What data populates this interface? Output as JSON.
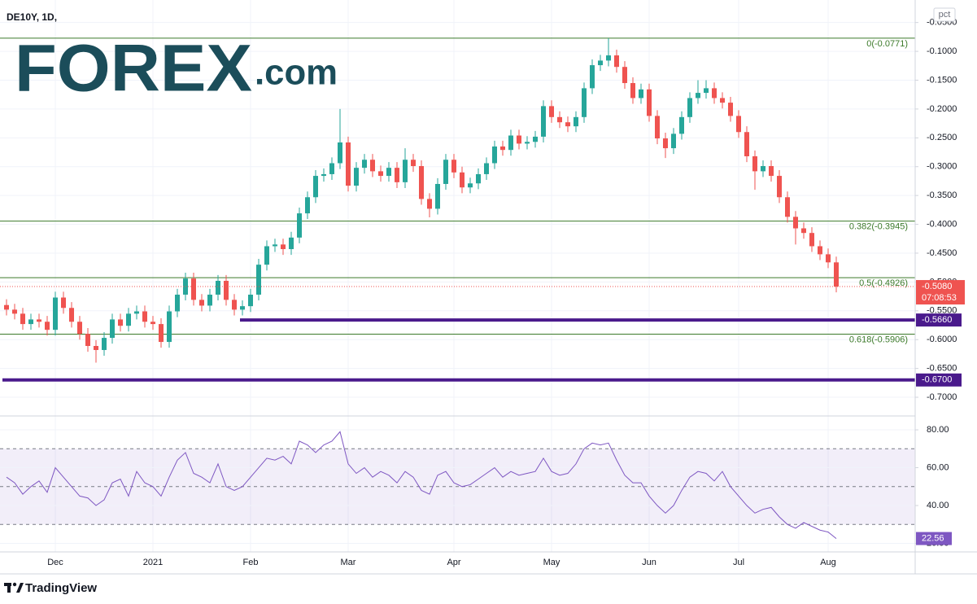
{
  "chart_data": [
    {
      "type": "candlestick",
      "title": "DE10Y, 1D,",
      "unit": "pct",
      "up_color": "#26a69a",
      "down_color": "#ef5350",
      "categories": [
        null,
        null,
        null,
        null,
        null,
        null,
        "Dec",
        null,
        null,
        null,
        null,
        null,
        null,
        null,
        null,
        null,
        null,
        null,
        "2021",
        null,
        null,
        null,
        null,
        null,
        null,
        null,
        null,
        null,
        null,
        null,
        "Feb",
        null,
        null,
        null,
        null,
        null,
        null,
        null,
        null,
        null,
        null,
        null,
        "Mar",
        null,
        null,
        null,
        null,
        null,
        null,
        null,
        null,
        null,
        null,
        null,
        null,
        "Apr",
        null,
        null,
        null,
        null,
        null,
        null,
        null,
        null,
        null,
        null,
        null,
        "May",
        null,
        null,
        null,
        null,
        null,
        null,
        null,
        null,
        null,
        null,
        null,
        "Jun",
        null,
        null,
        null,
        null,
        null,
        null,
        null,
        null,
        null,
        null,
        "Jul",
        null,
        null,
        null,
        null,
        null,
        null,
        null,
        null,
        null,
        null,
        "Aug",
        null
      ],
      "open": [
        -0.54,
        -0.548,
        -0.555,
        -0.573,
        -0.565,
        -0.569,
        -0.583,
        -0.527,
        -0.545,
        -0.569,
        -0.59,
        -0.611,
        -0.618,
        -0.597,
        -0.565,
        -0.576,
        -0.555,
        -0.551,
        -0.569,
        -0.573,
        -0.604,
        -0.551,
        -0.522,
        -0.494,
        -0.531,
        -0.541,
        -0.522,
        -0.498,
        -0.531,
        -0.548,
        -0.542,
        -0.522,
        -0.47,
        -0.438,
        -0.435,
        -0.443,
        -0.423,
        -0.381,
        -0.353,
        -0.316,
        -0.313,
        -0.294,
        -0.258,
        -0.333,
        -0.302,
        -0.288,
        -0.308,
        -0.316,
        -0.302,
        -0.327,
        -0.288,
        -0.299,
        -0.356,
        -0.373,
        -0.33,
        -0.288,
        -0.31,
        -0.336,
        -0.329,
        -0.313,
        -0.294,
        -0.265,
        -0.271,
        -0.246,
        -0.26,
        -0.257,
        -0.248,
        -0.195,
        -0.214,
        -0.223,
        -0.23,
        -0.214,
        -0.164,
        -0.124,
        -0.116,
        -0.107,
        -0.127,
        -0.155,
        -0.181,
        -0.166,
        -0.212,
        -0.251,
        -0.268,
        -0.243,
        -0.214,
        -0.181,
        -0.172,
        -0.164,
        -0.181,
        -0.189,
        -0.212,
        -0.24,
        -0.282,
        -0.308,
        -0.299,
        -0.316,
        -0.353,
        -0.387,
        -0.407,
        -0.415,
        -0.438,
        -0.452,
        -0.466
      ],
      "high": [
        -0.53,
        -0.538,
        -0.545,
        -0.555,
        -0.555,
        -0.559,
        -0.517,
        -0.517,
        -0.535,
        -0.559,
        -0.58,
        -0.601,
        -0.587,
        -0.555,
        -0.555,
        -0.545,
        -0.541,
        -0.541,
        -0.559,
        -0.563,
        -0.541,
        -0.512,
        -0.484,
        -0.484,
        -0.521,
        -0.512,
        -0.488,
        -0.488,
        -0.521,
        -0.532,
        -0.512,
        -0.46,
        -0.428,
        -0.425,
        -0.425,
        -0.413,
        -0.371,
        -0.343,
        -0.306,
        -0.303,
        -0.284,
        -0.2,
        -0.248,
        -0.292,
        -0.278,
        -0.278,
        -0.298,
        -0.292,
        -0.292,
        -0.268,
        -0.278,
        -0.289,
        -0.346,
        -0.32,
        -0.278,
        -0.278,
        -0.3,
        -0.319,
        -0.303,
        -0.284,
        -0.255,
        -0.255,
        -0.236,
        -0.236,
        -0.247,
        -0.238,
        -0.185,
        -0.185,
        -0.204,
        -0.213,
        -0.204,
        -0.154,
        -0.114,
        -0.106,
        -0.0771,
        -0.097,
        -0.117,
        -0.145,
        -0.156,
        -0.156,
        -0.202,
        -0.241,
        -0.233,
        -0.204,
        -0.171,
        -0.15,
        -0.15,
        -0.154,
        -0.171,
        -0.179,
        -0.202,
        -0.23,
        -0.272,
        -0.289,
        -0.289,
        -0.306,
        -0.343,
        -0.377,
        -0.397,
        -0.405,
        -0.428,
        -0.442,
        -0.456
      ],
      "low": [
        -0.558,
        -0.565,
        -0.583,
        -0.583,
        -0.579,
        -0.593,
        -0.593,
        -0.555,
        -0.579,
        -0.6,
        -0.621,
        -0.64,
        -0.628,
        -0.607,
        -0.586,
        -0.586,
        -0.565,
        -0.579,
        -0.583,
        -0.614,
        -0.614,
        -0.561,
        -0.532,
        -0.541,
        -0.551,
        -0.551,
        -0.532,
        -0.541,
        -0.558,
        -0.558,
        -0.552,
        -0.532,
        -0.48,
        -0.448,
        -0.453,
        -0.453,
        -0.433,
        -0.391,
        -0.363,
        -0.326,
        -0.323,
        -0.304,
        -0.343,
        -0.343,
        -0.312,
        -0.318,
        -0.326,
        -0.326,
        -0.337,
        -0.337,
        -0.309,
        -0.366,
        -0.388,
        -0.383,
        -0.34,
        -0.32,
        -0.346,
        -0.346,
        -0.339,
        -0.323,
        -0.304,
        -0.281,
        -0.281,
        -0.27,
        -0.27,
        -0.267,
        -0.258,
        -0.224,
        -0.233,
        -0.24,
        -0.24,
        -0.224,
        -0.174,
        -0.134,
        -0.126,
        -0.137,
        -0.165,
        -0.191,
        -0.191,
        -0.222,
        -0.261,
        -0.285,
        -0.278,
        -0.253,
        -0.224,
        -0.191,
        -0.182,
        -0.191,
        -0.199,
        -0.222,
        -0.25,
        -0.292,
        -0.34,
        -0.318,
        -0.326,
        -0.363,
        -0.397,
        -0.435,
        -0.425,
        -0.448,
        -0.462,
        -0.476,
        -0.518
      ],
      "close": [
        -0.548,
        -0.555,
        -0.573,
        -0.565,
        -0.569,
        -0.583,
        -0.527,
        -0.545,
        -0.569,
        -0.59,
        -0.611,
        -0.618,
        -0.597,
        -0.565,
        -0.576,
        -0.555,
        -0.551,
        -0.569,
        -0.573,
        -0.604,
        -0.551,
        -0.522,
        -0.494,
        -0.531,
        -0.541,
        -0.522,
        -0.498,
        -0.531,
        -0.548,
        -0.542,
        -0.522,
        -0.47,
        -0.438,
        -0.435,
        -0.443,
        -0.423,
        -0.381,
        -0.353,
        -0.316,
        -0.313,
        -0.294,
        -0.258,
        -0.333,
        -0.302,
        -0.288,
        -0.308,
        -0.316,
        -0.302,
        -0.327,
        -0.288,
        -0.299,
        -0.356,
        -0.373,
        -0.33,
        -0.288,
        -0.31,
        -0.336,
        -0.329,
        -0.313,
        -0.294,
        -0.265,
        -0.271,
        -0.246,
        -0.26,
        -0.257,
        -0.248,
        -0.195,
        -0.214,
        -0.223,
        -0.23,
        -0.214,
        -0.164,
        -0.124,
        -0.116,
        -0.107,
        -0.127,
        -0.155,
        -0.181,
        -0.166,
        -0.212,
        -0.251,
        -0.268,
        -0.243,
        -0.214,
        -0.181,
        -0.172,
        -0.164,
        -0.181,
        -0.189,
        -0.212,
        -0.24,
        -0.282,
        -0.308,
        -0.299,
        -0.316,
        -0.353,
        -0.387,
        -0.407,
        -0.415,
        -0.438,
        -0.452,
        -0.466,
        -0.508
      ],
      "ylim": [
        -0.731,
        -0.018
      ],
      "yticks": [
        {
          "value": -0.05,
          "label": "-0.0500"
        },
        {
          "value": -0.1,
          "label": "-0.1000"
        },
        {
          "value": -0.15,
          "label": "-0.1500"
        },
        {
          "value": -0.2,
          "label": "-0.2000"
        },
        {
          "value": -0.25,
          "label": "-0.2500"
        },
        {
          "value": -0.3,
          "label": "-0.3000"
        },
        {
          "value": -0.35,
          "label": "-0.3500"
        },
        {
          "value": -0.4,
          "label": "-0.4000"
        },
        {
          "value": -0.45,
          "label": "-0.4500"
        },
        {
          "value": -0.5,
          "label": "-0.5000"
        },
        {
          "value": -0.55,
          "label": "-0.5500"
        },
        {
          "value": -0.6,
          "label": "-0.6000"
        },
        {
          "value": -0.65,
          "label": "-0.6500"
        },
        {
          "value": -0.7,
          "label": "-0.7000"
        }
      ],
      "grid": true,
      "fib_color": "#3c7a2a",
      "fib_levels": [
        {
          "value": -0.0771,
          "label": "0(-0.0771)"
        },
        {
          "value": -0.3945,
          "label": "0.382(-0.3945)"
        },
        {
          "value": -0.4926,
          "label": "0.5(-0.4926)"
        },
        {
          "value": -0.5906,
          "label": "0.618(-0.5906)"
        }
      ],
      "support_color": "#4a1a8c",
      "support_levels": [
        {
          "value": -0.566,
          "label": "-0.5660"
        },
        {
          "value": -0.67,
          "label": "-0.6700"
        }
      ],
      "last_price": {
        "value": -0.508,
        "label": "-0.5080",
        "countdown": "07:08:53"
      }
    },
    {
      "type": "line",
      "color": "#7e57c2",
      "values": [
        55,
        52,
        46,
        50,
        53,
        47,
        60,
        55,
        50,
        45,
        44,
        40,
        43,
        52,
        54,
        45,
        58,
        52,
        50,
        45,
        55,
        64,
        68,
        57,
        55,
        52,
        62,
        50,
        48,
        50,
        55,
        60,
        65,
        64,
        66,
        62,
        74,
        72,
        68,
        72,
        74,
        79,
        62,
        57,
        60,
        55,
        58,
        56,
        52,
        58,
        55,
        48,
        46,
        56,
        58,
        52,
        50,
        51,
        54,
        57,
        60,
        55,
        58,
        56,
        57,
        58,
        65,
        58,
        56,
        57,
        62,
        70,
        73,
        72,
        73,
        64,
        56,
        52,
        52,
        45,
        40,
        36,
        40,
        48,
        55,
        58,
        57,
        53,
        58,
        50,
        45,
        40,
        36,
        38,
        39,
        34,
        30,
        28,
        31,
        29,
        27,
        26,
        22.56
      ],
      "ylim": [
        15.5,
        86.9
      ],
      "yticks": [
        {
          "value": 20,
          "label": "20.00"
        },
        {
          "value": 40,
          "label": "40.00"
        },
        {
          "value": 60,
          "label": "60.00"
        },
        {
          "value": 80,
          "label": "80.00"
        }
      ],
      "band": [
        30,
        70
      ],
      "midline": 50
    }
  ],
  "branding": {
    "logo_brand": "FOREX",
    "logo_suffix": ".com",
    "footer": "TradingView"
  }
}
